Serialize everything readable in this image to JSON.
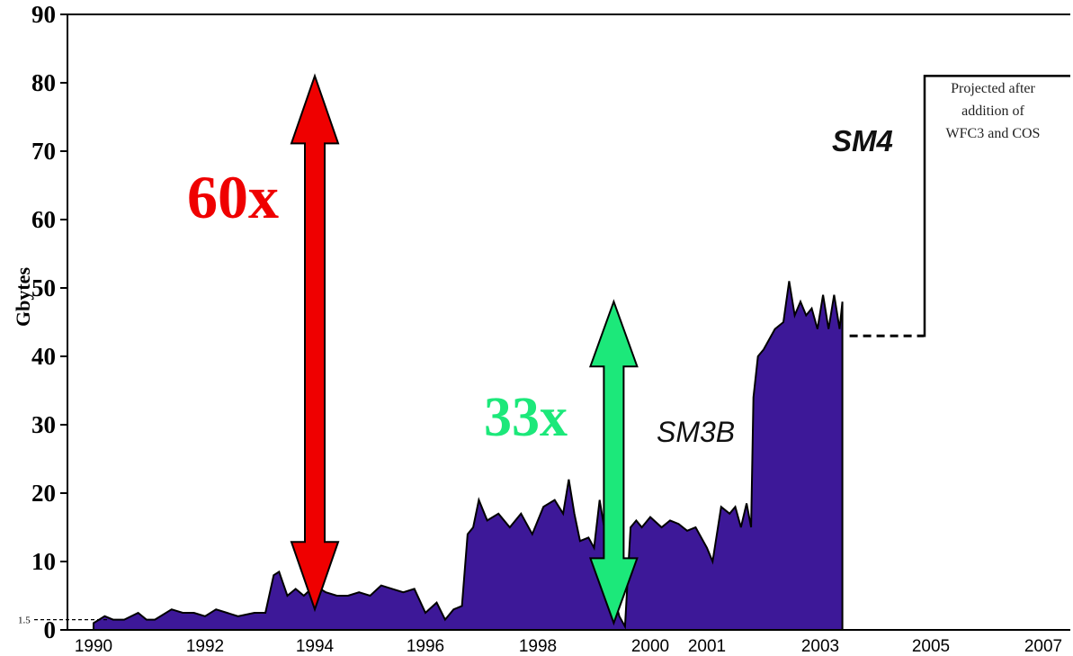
{
  "chart_data": {
    "type": "area",
    "ylabel": "Gbytes",
    "xlabel": "",
    "ylim": [
      0,
      90
    ],
    "xlim": [
      1990,
      2007
    ],
    "y_ticks": [
      "0",
      "10",
      "20",
      "30",
      "40",
      "50",
      "60",
      "70",
      "80",
      "90"
    ],
    "y_reference_label": "1.5",
    "x_ticks": [
      {
        "label": "1990",
        "value": 1990
      },
      {
        "label": "1992",
        "value": 1992
      },
      {
        "label": "1994",
        "value": 1994
      },
      {
        "label": "1996",
        "value": 1996
      },
      {
        "label": "1998",
        "value": 1998
      },
      {
        "label": "2000",
        "value": 2000
      },
      {
        "label": "2001",
        "value": 2001
      },
      {
        "label": "2003",
        "value": 2003
      },
      {
        "label": "2005",
        "value": 2005
      },
      {
        "label": "2007",
        "value": 2007
      }
    ],
    "fill_color": "#3d1898",
    "series": [
      {
        "x": [
          1990.0,
          1990.2,
          1990.35,
          1990.55,
          1990.8,
          1990.95,
          1991.1,
          1991.4,
          1991.6,
          1991.8,
          1992.0,
          1992.2,
          1992.4,
          1992.6,
          1992.9,
          1993.1,
          1993.25,
          1993.35,
          1993.5,
          1993.65,
          1993.8,
          1994.0,
          1994.2,
          1994.4,
          1994.6,
          1994.8,
          1995.0,
          1995.2,
          1995.4,
          1995.6,
          1995.8,
          1996.0,
          1996.2,
          1996.35,
          1996.5,
          1996.65,
          1996.75,
          1996.85,
          1996.95,
          1997.1,
          1997.3,
          1997.5,
          1997.7,
          1997.9,
          1998.1,
          1998.3,
          1998.45,
          1998.55,
          1998.65,
          1998.75,
          1998.9,
          1999.0,
          1999.1,
          1999.2,
          1999.35,
          1999.45,
          1999.55,
          1999.65,
          1999.75,
          1999.85,
          2000.0,
          2000.2,
          2000.35,
          2000.5,
          2000.65,
          2000.8,
          2001.0,
          2001.1,
          2001.25,
          2001.4,
          2001.5,
          2001.6,
          2001.7,
          2001.78,
          2001.82,
          2001.9,
          2002.0,
          2002.2,
          2002.35,
          2002.45,
          2002.55,
          2002.65,
          2002.75,
          2002.85,
          2002.95,
          2003.05,
          2003.15,
          2003.25,
          2003.35,
          2003.4
        ],
        "y": [
          1.0,
          2.0,
          1.5,
          1.5,
          2.5,
          1.5,
          1.5,
          3.0,
          2.5,
          2.5,
          2.0,
          3.0,
          2.5,
          2.0,
          2.5,
          2.5,
          8.0,
          8.5,
          5.0,
          6.0,
          5.0,
          6.5,
          5.5,
          5.0,
          5.0,
          5.5,
          5.0,
          6.5,
          6.0,
          5.5,
          6.0,
          2.5,
          4.0,
          1.5,
          3.0,
          3.5,
          14.0,
          15.0,
          19.0,
          16.0,
          17.0,
          15.0,
          17.0,
          14.0,
          18.0,
          19.0,
          17.0,
          22.0,
          17.0,
          13.0,
          13.5,
          12.0,
          19.0,
          14.0,
          5.0,
          2.0,
          0.5,
          15.0,
          16.0,
          15.0,
          16.5,
          15.0,
          16.0,
          15.5,
          14.5,
          15.0,
          12.0,
          10.0,
          18.0,
          17.0,
          18.0,
          15.0,
          18.5,
          15.0,
          34.0,
          40.0,
          41.0,
          44.0,
          45.0,
          51.0,
          46.0,
          48.0,
          46.0,
          47.0,
          44.0,
          49.0,
          44.0,
          49.0,
          44.0,
          48.0
        ]
      }
    ],
    "projection": {
      "type": "step",
      "dashed_from": 2003.4,
      "dashed_to": 2005.0,
      "dashed_value": 43,
      "step_value": 81,
      "step_to": 2007
    }
  },
  "annotations": {
    "red_label": "60x",
    "red_color": "#ef0000",
    "red_arrow": {
      "x": 1994,
      "y_from": 3,
      "y_to": 81
    },
    "green_label": "33x",
    "green_color": "#1ce87a",
    "green_arrow": {
      "x": 1999.35,
      "y_from": 1,
      "y_to": 48
    },
    "sm3b_label": "SM3B",
    "sm4_label": "SM4",
    "projected_note": [
      "Projected after",
      "addition of",
      "WFC3 and COS"
    ]
  }
}
